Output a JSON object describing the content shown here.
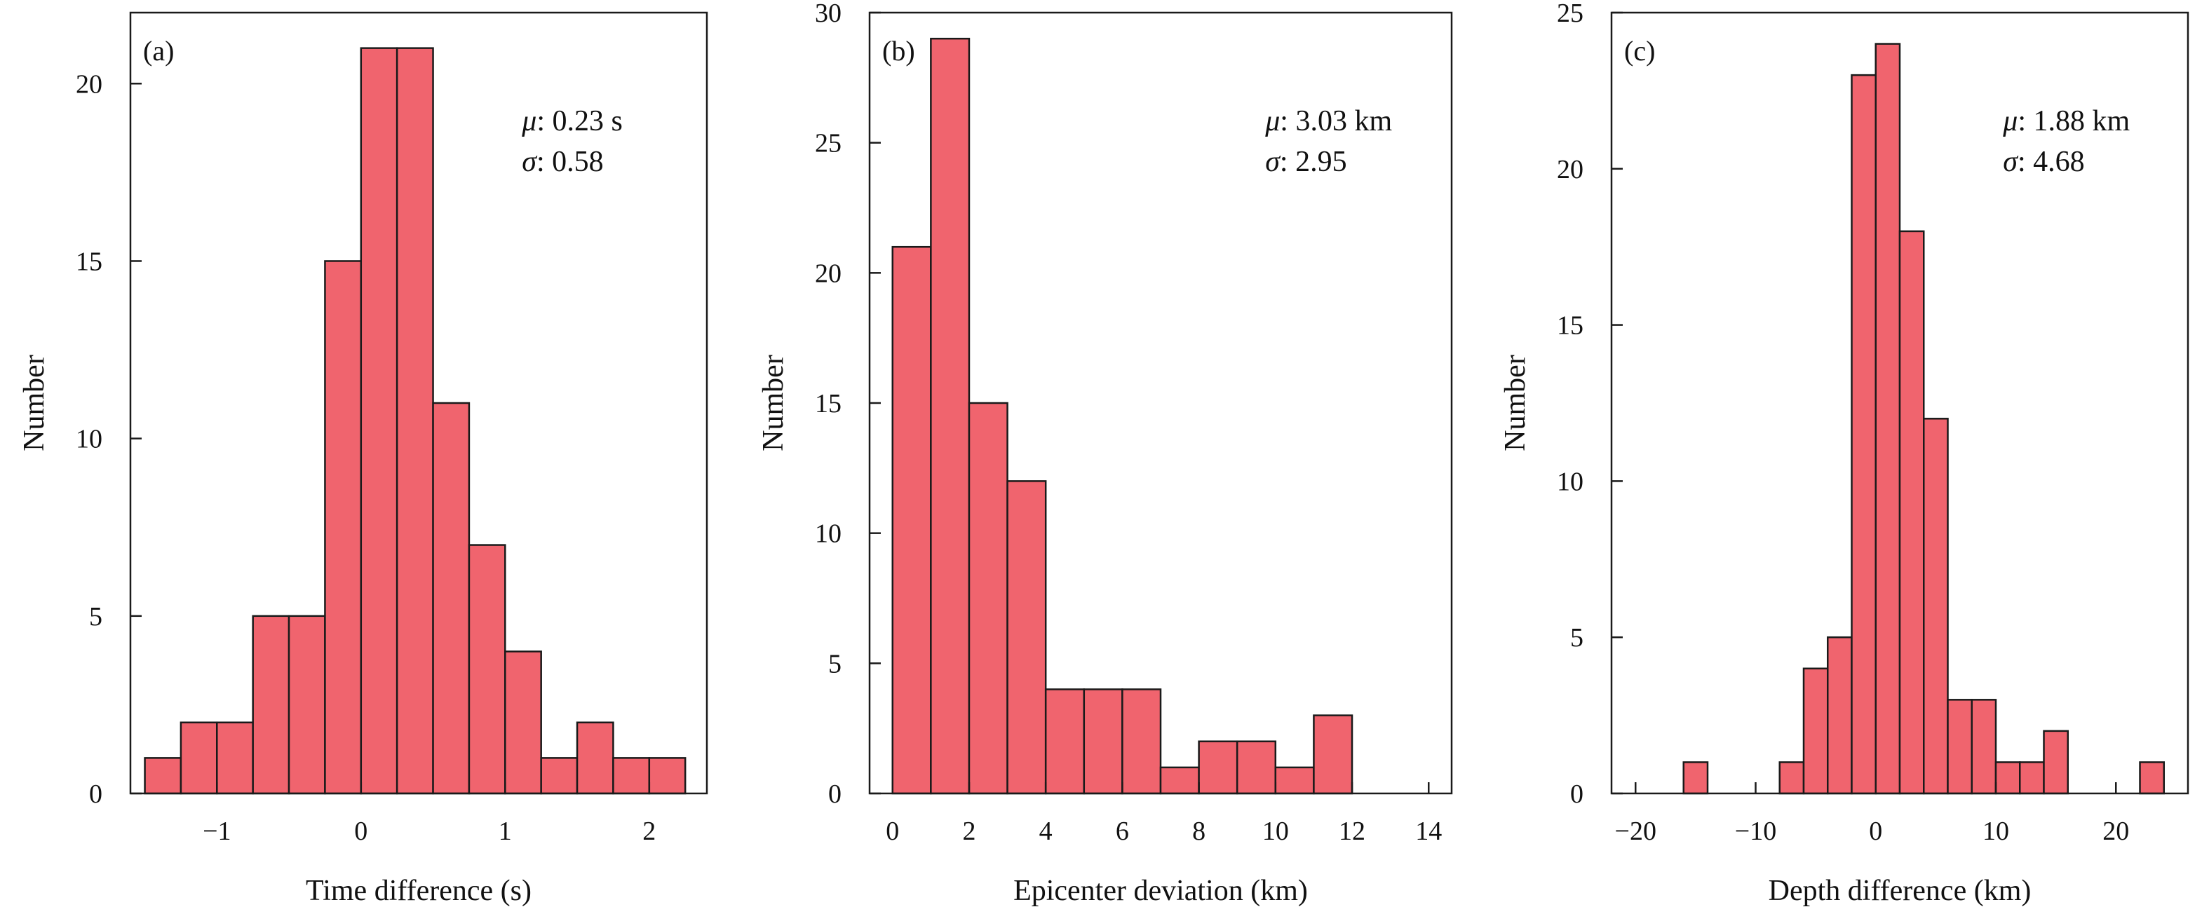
{
  "chart_data": [
    {
      "type": "bar",
      "panel_label": "(a)",
      "xlabel": "Time difference (s)",
      "ylabel": "Number",
      "xlim": [
        -1.6,
        2.4
      ],
      "ylim": [
        0,
        22
      ],
      "xticks": [
        -1,
        0,
        1,
        2
      ],
      "xtick_labels": [
        "−1",
        "0",
        "1",
        "2"
      ],
      "yticks": [
        0,
        5,
        10,
        15,
        20
      ],
      "ytick_labels": [
        "0",
        "5",
        "10",
        "15",
        "20"
      ],
      "bins": [
        {
          "x0": -1.5,
          "x1": -1.25,
          "value": 1
        },
        {
          "x0": -1.25,
          "x1": -1.0,
          "value": 2
        },
        {
          "x0": -1.0,
          "x1": -0.75,
          "value": 2
        },
        {
          "x0": -0.75,
          "x1": -0.5,
          "value": 5
        },
        {
          "x0": -0.5,
          "x1": -0.25,
          "value": 5
        },
        {
          "x0": -0.25,
          "x1": 0.0,
          "value": 15
        },
        {
          "x0": 0.0,
          "x1": 0.25,
          "value": 21
        },
        {
          "x0": 0.25,
          "x1": 0.5,
          "value": 21
        },
        {
          "x0": 0.5,
          "x1": 0.75,
          "value": 11
        },
        {
          "x0": 0.75,
          "x1": 1.0,
          "value": 7
        },
        {
          "x0": 1.0,
          "x1": 1.25,
          "value": 4
        },
        {
          "x0": 1.25,
          "x1": 1.5,
          "value": 1
        },
        {
          "x0": 1.5,
          "x1": 1.75,
          "value": 2
        },
        {
          "x0": 1.75,
          "x1": 2.0,
          "value": 1
        },
        {
          "x0": 2.0,
          "x1": 2.25,
          "value": 1
        }
      ],
      "stats": {
        "mu_symbol": "μ",
        "mu_value": ": 0.23 s",
        "sigma_symbol": "σ",
        "sigma_value": ": 0.58"
      }
    },
    {
      "type": "bar",
      "panel_label": "(b)",
      "xlabel": "Epicenter deviation (km)",
      "ylabel": "Number",
      "xlim": [
        -0.6,
        14.6
      ],
      "ylim": [
        0,
        30
      ],
      "xticks": [
        0,
        2,
        4,
        6,
        8,
        10,
        12,
        14
      ],
      "xtick_labels": [
        "0",
        "2",
        "4",
        "6",
        "8",
        "10",
        "12",
        "14"
      ],
      "yticks": [
        0,
        5,
        10,
        15,
        20,
        25,
        30
      ],
      "ytick_labels": [
        "0",
        "5",
        "10",
        "15",
        "20",
        "25",
        "30"
      ],
      "bins": [
        {
          "x0": 0,
          "x1": 1,
          "value": 21
        },
        {
          "x0": 1,
          "x1": 2,
          "value": 29
        },
        {
          "x0": 2,
          "x1": 3,
          "value": 15
        },
        {
          "x0": 3,
          "x1": 4,
          "value": 12
        },
        {
          "x0": 4,
          "x1": 5,
          "value": 4
        },
        {
          "x0": 5,
          "x1": 6,
          "value": 4
        },
        {
          "x0": 6,
          "x1": 7,
          "value": 4
        },
        {
          "x0": 7,
          "x1": 8,
          "value": 1
        },
        {
          "x0": 8,
          "x1": 9,
          "value": 2
        },
        {
          "x0": 9,
          "x1": 10,
          "value": 2
        },
        {
          "x0": 10,
          "x1": 11,
          "value": 1
        },
        {
          "x0": 11,
          "x1": 12,
          "value": 3
        }
      ],
      "stats": {
        "mu_symbol": "μ",
        "mu_value": ": 3.03 km",
        "sigma_symbol": "σ",
        "sigma_value": ": 2.95"
      }
    },
    {
      "type": "bar",
      "panel_label": "(c)",
      "xlabel": "Depth difference (km)",
      "ylabel": "Number",
      "xlim": [
        -22,
        26
      ],
      "ylim": [
        0,
        25
      ],
      "xticks": [
        -20,
        -10,
        0,
        10,
        20
      ],
      "xtick_labels": [
        "−20",
        "−10",
        "0",
        "10",
        "20"
      ],
      "yticks": [
        0,
        5,
        10,
        15,
        20,
        25
      ],
      "ytick_labels": [
        "0",
        "5",
        "10",
        "15",
        "20",
        "25"
      ],
      "bins": [
        {
          "x0": -16,
          "x1": -14,
          "value": 1
        },
        {
          "x0": -8,
          "x1": -6,
          "value": 1
        },
        {
          "x0": -6,
          "x1": -4,
          "value": 4
        },
        {
          "x0": -4,
          "x1": -2,
          "value": 5
        },
        {
          "x0": -2,
          "x1": 0,
          "value": 23
        },
        {
          "x0": 0,
          "x1": 2,
          "value": 24
        },
        {
          "x0": 2,
          "x1": 4,
          "value": 18
        },
        {
          "x0": 4,
          "x1": 6,
          "value": 12
        },
        {
          "x0": 6,
          "x1": 8,
          "value": 3
        },
        {
          "x0": 8,
          "x1": 10,
          "value": 3
        },
        {
          "x0": 10,
          "x1": 12,
          "value": 1
        },
        {
          "x0": 12,
          "x1": 14,
          "value": 1
        },
        {
          "x0": 14,
          "x1": 16,
          "value": 2
        },
        {
          "x0": 22,
          "x1": 24,
          "value": 1
        }
      ],
      "stats": {
        "mu_symbol": "μ",
        "mu_value": ": 1.88 km",
        "sigma_symbol": "σ",
        "sigma_value": ": 4.68"
      }
    }
  ],
  "style": {
    "bar_fill": "#f0646e",
    "bar_stroke": "#1a1a1a",
    "axis_color": "#1a1a1a"
  }
}
